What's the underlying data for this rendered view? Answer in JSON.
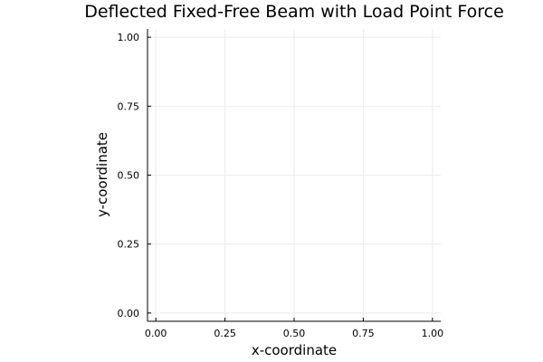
{
  "chart_data": {
    "type": "line",
    "title": "Deflected Fixed-Free Beam with Load Point Force",
    "xlabel": "x-coordinate",
    "ylabel": "y-coordinate",
    "xlim": [
      -0.03,
      1.03
    ],
    "ylim": [
      -0.03,
      1.03
    ],
    "xticks": [
      0.0,
      0.25,
      0.5,
      0.75,
      1.0
    ],
    "xtick_labels": [
      "0.00",
      "0.25",
      "0.50",
      "0.75",
      "1.00"
    ],
    "yticks": [
      0.0,
      0.25,
      0.5,
      0.75,
      1.0
    ],
    "ytick_labels": [
      "0.00",
      "0.25",
      "0.50",
      "0.75",
      "1.00"
    ],
    "grid": true,
    "series": []
  },
  "colors": {
    "axis": "#000000",
    "grid": "#ececec",
    "text": "#000000",
    "background": "#ffffff"
  }
}
